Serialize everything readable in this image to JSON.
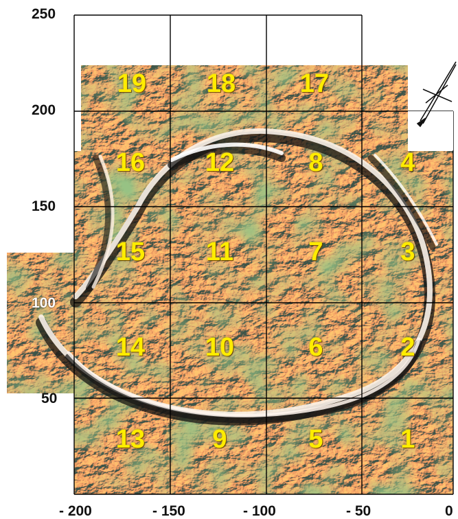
{
  "axes": {
    "y_ticks": [
      "250",
      "200",
      "150",
      "100",
      "50"
    ],
    "x_ticks": [
      "- 200",
      "- 150",
      "- 100",
      "- 50",
      "0"
    ]
  },
  "panels": [
    "1",
    "2",
    "3",
    "4",
    "5",
    "6",
    "7",
    "8",
    "9",
    "10",
    "11",
    "12",
    "13",
    "14",
    "15",
    "16",
    "17",
    "18",
    "19"
  ],
  "colors": {
    "terrain_orange": "#d9773a",
    "terrain_highlight": "#fdf2e6",
    "terrain_shadow": "#1a1a1a",
    "terrain_green": "#4f8a3a",
    "panel_label": "#ffec00",
    "grid_line": "#000000"
  },
  "north_arrow": "north-arrow-icon"
}
